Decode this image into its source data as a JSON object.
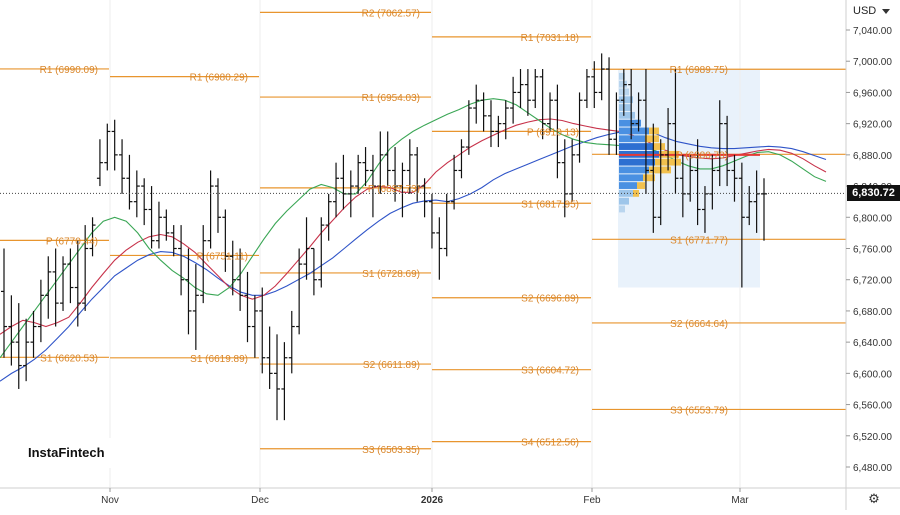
{
  "chart_data": {
    "type": "ohlc",
    "currency": "USD",
    "current_price": "6,830.72",
    "brand": "InstaFintech",
    "y_range": [
      6460,
      7080
    ],
    "y_ticks": [
      "7,040.00",
      "7,000.00",
      "6,960.00",
      "6,920.00",
      "6,880.00",
      "6,840.00",
      "6,800.00",
      "6,760.00",
      "6,720.00",
      "6,680.00",
      "6,640.00",
      "6,600.00",
      "6,560.00",
      "6,520.00",
      "6,480.00"
    ],
    "x_labels": [
      {
        "label": "Nov",
        "bold": false
      },
      {
        "label": "Dec",
        "bold": false
      },
      {
        "label": "2026",
        "bold": true
      },
      {
        "label": "Feb",
        "bold": false
      },
      {
        "label": "Mar",
        "bold": false
      }
    ],
    "pivot_levels": [
      {
        "label": "R1 (6990.09)",
        "value": 6990.09,
        "period": 1
      },
      {
        "label": "P (6770.44)",
        "value": 6770.44,
        "period": 1
      },
      {
        "label": "S1 (6620.53)",
        "value": 6620.53,
        "period": 1
      },
      {
        "label": "R1 (6980.29)",
        "value": 6980.29,
        "period": 2
      },
      {
        "label": "P (6751.11)",
        "value": 6751.11,
        "period": 2
      },
      {
        "label": "S1 (6619.89)",
        "value": 6619.89,
        "period": 2
      },
      {
        "label": "R2 (7062.57)",
        "value": 7062.57,
        "period": 3
      },
      {
        "label": "R1 (6954.03)",
        "value": 6954.03,
        "period": 3
      },
      {
        "label": "P (6837.73)",
        "value": 6837.73,
        "period": 3
      },
      {
        "label": "S1 (6728.69)",
        "value": 6728.69,
        "period": 3
      },
      {
        "label": "S2 (6611.89)",
        "value": 6611.89,
        "period": 3
      },
      {
        "label": "S3 (6503.35)",
        "value": 6503.35,
        "period": 3
      },
      {
        "label": "R1 (7031.18)",
        "value": 7031.18,
        "period": 4
      },
      {
        "label": "P (6910.13)",
        "value": 6910.13,
        "period": 4
      },
      {
        "label": "S1 (6817.95)",
        "value": 6817.95,
        "period": 4
      },
      {
        "label": "S2 (6696.89)",
        "value": 6696.89,
        "period": 4
      },
      {
        "label": "S3 (6604.72)",
        "value": 6604.72,
        "period": 4
      },
      {
        "label": "S4 (6512.56)",
        "value": 6512.56,
        "period": 4
      },
      {
        "label": "R1 (6989.75)",
        "value": 6989.75,
        "period": 5
      },
      {
        "label": "P (6880.70)",
        "value": 6880.7,
        "period": 5
      },
      {
        "label": "S1 (6771.77)",
        "value": 6771.77,
        "period": 5
      },
      {
        "label": "S2 (6664.64)",
        "value": 6664.64,
        "period": 5
      },
      {
        "label": "S3 (6553.79)",
        "value": 6553.79,
        "period": 5
      }
    ],
    "bars": [
      [
        6705,
        6760,
        6620,
        6660
      ],
      [
        6660,
        6700,
        6610,
        6640
      ],
      [
        6640,
        6690,
        6580,
        6610
      ],
      [
        6610,
        6670,
        6590,
        6640
      ],
      [
        6640,
        6680,
        6620,
        6660
      ],
      [
        6660,
        6720,
        6640,
        6700
      ],
      [
        6700,
        6750,
        6670,
        6730
      ],
      [
        6730,
        6760,
        6660,
        6690
      ],
      [
        6690,
        6750,
        6680,
        6740
      ],
      [
        6740,
        6760,
        6690,
        6710
      ],
      [
        6710,
        6770,
        6660,
        6690
      ],
      [
        6690,
        6790,
        6680,
        6760
      ],
      [
        6760,
        6800,
        6750,
        6790
      ],
      [
        6850,
        6900,
        6840,
        6870
      ],
      [
        6870,
        6920,
        6860,
        6910
      ],
      [
        6910,
        6925,
        6860,
        6880
      ],
      [
        6880,
        6900,
        6830,
        6850
      ],
      [
        6850,
        6880,
        6810,
        6820
      ],
      [
        6820,
        6860,
        6800,
        6840
      ],
      [
        6840,
        6850,
        6790,
        6810
      ],
      [
        6810,
        6840,
        6760,
        6770
      ],
      [
        6770,
        6820,
        6760,
        6800
      ],
      [
        6800,
        6810,
        6770,
        6780
      ],
      [
        6780,
        6790,
        6750,
        6760
      ],
      [
        6760,
        6790,
        6700,
        6720
      ],
      [
        6720,
        6760,
        6650,
        6680
      ],
      [
        6680,
        6740,
        6630,
        6700
      ],
      [
        6700,
        6790,
        6690,
        6770
      ],
      [
        6770,
        6860,
        6760,
        6840
      ],
      [
        6840,
        6850,
        6780,
        6800
      ],
      [
        6800,
        6810,
        6730,
        6750
      ],
      [
        6750,
        6770,
        6700,
        6720
      ],
      [
        6720,
        6760,
        6680,
        6700
      ],
      [
        6700,
        6730,
        6640,
        6660
      ],
      [
        6660,
        6700,
        6620,
        6680
      ],
      [
        6680,
        6710,
        6600,
        6620
      ],
      [
        6620,
        6660,
        6580,
        6600
      ],
      [
        6600,
        6650,
        6540,
        6580
      ],
      [
        6580,
        6640,
        6540,
        6620
      ],
      [
        6620,
        6680,
        6600,
        6660
      ],
      [
        6660,
        6760,
        6650,
        6740
      ],
      [
        6740,
        6800,
        6720,
        6760
      ],
      [
        6760,
        6760,
        6700,
        6720
      ],
      [
        6720,
        6800,
        6710,
        6790
      ],
      [
        6790,
        6830,
        6770,
        6820
      ],
      [
        6820,
        6870,
        6800,
        6850
      ],
      [
        6850,
        6880,
        6810,
        6830
      ],
      [
        6830,
        6860,
        6800,
        6840
      ],
      [
        6840,
        6880,
        6830,
        6870
      ],
      [
        6870,
        6890,
        6840,
        6860
      ],
      [
        6860,
        6880,
        6800,
        6840
      ],
      [
        6840,
        6910,
        6830,
        6880
      ],
      [
        6880,
        6910,
        6840,
        6860
      ],
      [
        6860,
        6890,
        6820,
        6840
      ],
      [
        6840,
        6870,
        6800,
        6860
      ],
      [
        6860,
        6900,
        6830,
        6880
      ],
      [
        6880,
        6890,
        6820,
        6840
      ],
      [
        6840,
        6850,
        6800,
        6820
      ],
      [
        6820,
        6830,
        6760,
        6780
      ],
      [
        6780,
        6800,
        6720,
        6760
      ],
      [
        6760,
        6830,
        6750,
        6820
      ],
      [
        6820,
        6880,
        6810,
        6860
      ],
      [
        6860,
        6900,
        6850,
        6890
      ],
      [
        6890,
        6950,
        6880,
        6940
      ],
      [
        6940,
        6970,
        6920,
        6950
      ],
      [
        6950,
        6960,
        6910,
        6930
      ],
      [
        6930,
        6950,
        6890,
        6910
      ],
      [
        6910,
        6930,
        6890,
        6920
      ],
      [
        6920,
        6950,
        6900,
        6940
      ],
      [
        6940,
        6980,
        6920,
        6960
      ],
      [
        6960,
        6990,
        6940,
        6970
      ],
      [
        6970,
        6990,
        6930,
        6950
      ],
      [
        6950,
        6990,
        6940,
        6980
      ],
      [
        6980,
        6990,
        6900,
        6920
      ],
      [
        6920,
        6960,
        6910,
        6950
      ],
      [
        6950,
        6970,
        6850,
        6870
      ],
      [
        6870,
        6900,
        6800,
        6830
      ],
      [
        6830,
        6900,
        6820,
        6880
      ],
      [
        6880,
        6960,
        6870,
        6950
      ],
      [
        6950,
        6990,
        6940,
        6980
      ],
      [
        6980,
        7000,
        6940,
        6960
      ],
      [
        6960,
        7010,
        6950,
        6990
      ],
      [
        6990,
        7005,
        6880,
        6900
      ],
      [
        6900,
        6960,
        6880,
        6950
      ],
      [
        6950,
        6990,
        6930,
        6970
      ],
      [
        6970,
        6990,
        6900,
        6920
      ],
      [
        6920,
        6960,
        6910,
        6950
      ],
      [
        6950,
        6990,
        6830,
        6860
      ],
      [
        6860,
        6920,
        6780,
        6800
      ],
      [
        6800,
        6900,
        6790,
        6880
      ],
      [
        6880,
        6940,
        6860,
        6920
      ],
      [
        6920,
        6990,
        6830,
        6850
      ],
      [
        6850,
        6880,
        6800,
        6830
      ],
      [
        6830,
        6880,
        6820,
        6860
      ],
      [
        6860,
        6900,
        6790,
        6810
      ],
      [
        6810,
        6840,
        6780,
        6830
      ],
      [
        6830,
        6880,
        6810,
        6860
      ],
      [
        6860,
        6950,
        6840,
        6920
      ],
      [
        6920,
        6930,
        6840,
        6860
      ],
      [
        6860,
        6880,
        6820,
        6850
      ],
      [
        6850,
        6870,
        6710,
        6800
      ],
      [
        6800,
        6840,
        6790,
        6820
      ],
      [
        6820,
        6860,
        6780,
        6830
      ],
      [
        6830,
        6850,
        6770,
        6830
      ]
    ],
    "series": [
      {
        "name": "",
        "color": "#2f54c8",
        "values": [
          6590,
          6600,
          6608,
          6618,
          6630,
          6645,
          6660,
          6678,
          6695,
          6710,
          6725,
          6735,
          6745,
          6752,
          6756,
          6755,
          6750,
          6742,
          6733,
          6722,
          6712,
          6704,
          6700,
          6700,
          6705,
          6712,
          6720,
          6728,
          6738,
          6748,
          6760,
          6772,
          6784,
          6795,
          6805,
          6812,
          6818,
          6821,
          6822,
          6820,
          6824,
          6830,
          6838,
          6848,
          6856,
          6862,
          6868,
          6874,
          6880,
          6886,
          6892,
          6897,
          6902,
          6906,
          6909,
          6911,
          6911,
          6908,
          6902,
          6897,
          6894,
          6891,
          6889,
          6888,
          6888,
          6889,
          6890,
          6891,
          6890,
          6888,
          6884,
          6879,
          6874
        ]
      },
      {
        "name": "",
        "color": "#c7324a",
        "values": [
          6650,
          6660,
          6668,
          6665,
          6660,
          6665,
          6672,
          6690,
          6710,
          6728,
          6745,
          6758,
          6768,
          6775,
          6778,
          6775,
          6766,
          6755,
          6740,
          6725,
          6710,
          6700,
          6695,
          6700,
          6712,
          6728,
          6745,
          6762,
          6780,
          6796,
          6812,
          6826,
          6836,
          6840,
          6838,
          6832,
          6832,
          6842,
          6858,
          6870,
          6880,
          6890,
          6898,
          6905,
          6912,
          6918,
          6922,
          6925,
          6926,
          6924,
          6920,
          6917,
          6914,
          6912,
          6910,
          6906,
          6900,
          6893,
          6886,
          6880,
          6878,
          6876,
          6875,
          6876,
          6879,
          6882,
          6885,
          6887,
          6886,
          6882,
          6875,
          6866,
          6858
        ]
      },
      {
        "name": "",
        "color": "#3aa655",
        "values": [
          6620,
          6640,
          6660,
          6680,
          6700,
          6720,
          6740,
          6760,
          6780,
          6795,
          6800,
          6795,
          6780,
          6760,
          6745,
          6732,
          6722,
          6710,
          6702,
          6700,
          6710,
          6728,
          6750,
          6772,
          6792,
          6808,
          6822,
          6836,
          6842,
          6838,
          6830,
          6830,
          6846,
          6868,
          6888,
          6900,
          6910,
          6918,
          6925,
          6932,
          6938,
          6945,
          6950,
          6952,
          6950,
          6944,
          6934,
          6924,
          6914,
          6906,
          6900,
          6896,
          6894,
          6893,
          6892,
          6891,
          6890,
          6886,
          6880,
          6872,
          6866,
          6862,
          6862,
          6866,
          6872,
          6878,
          6883,
          6884,
          6880,
          6872,
          6862,
          6852,
          6846
        ]
      }
    ]
  }
}
